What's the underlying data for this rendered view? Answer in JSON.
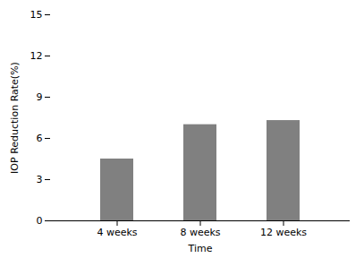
{
  "chart_data": {
    "type": "bar",
    "categories": [
      "4 weeks",
      "8 weeks",
      "12 weeks"
    ],
    "values": [
      4.5,
      7.0,
      7.3
    ],
    "color": "#808080",
    "xlabel": "Time",
    "ylabel": "IOP Reduction Rate(%)",
    "ylim": [
      0,
      15
    ],
    "yticks": [
      0,
      3,
      6,
      9,
      12,
      15
    ],
    "grid": false
  }
}
